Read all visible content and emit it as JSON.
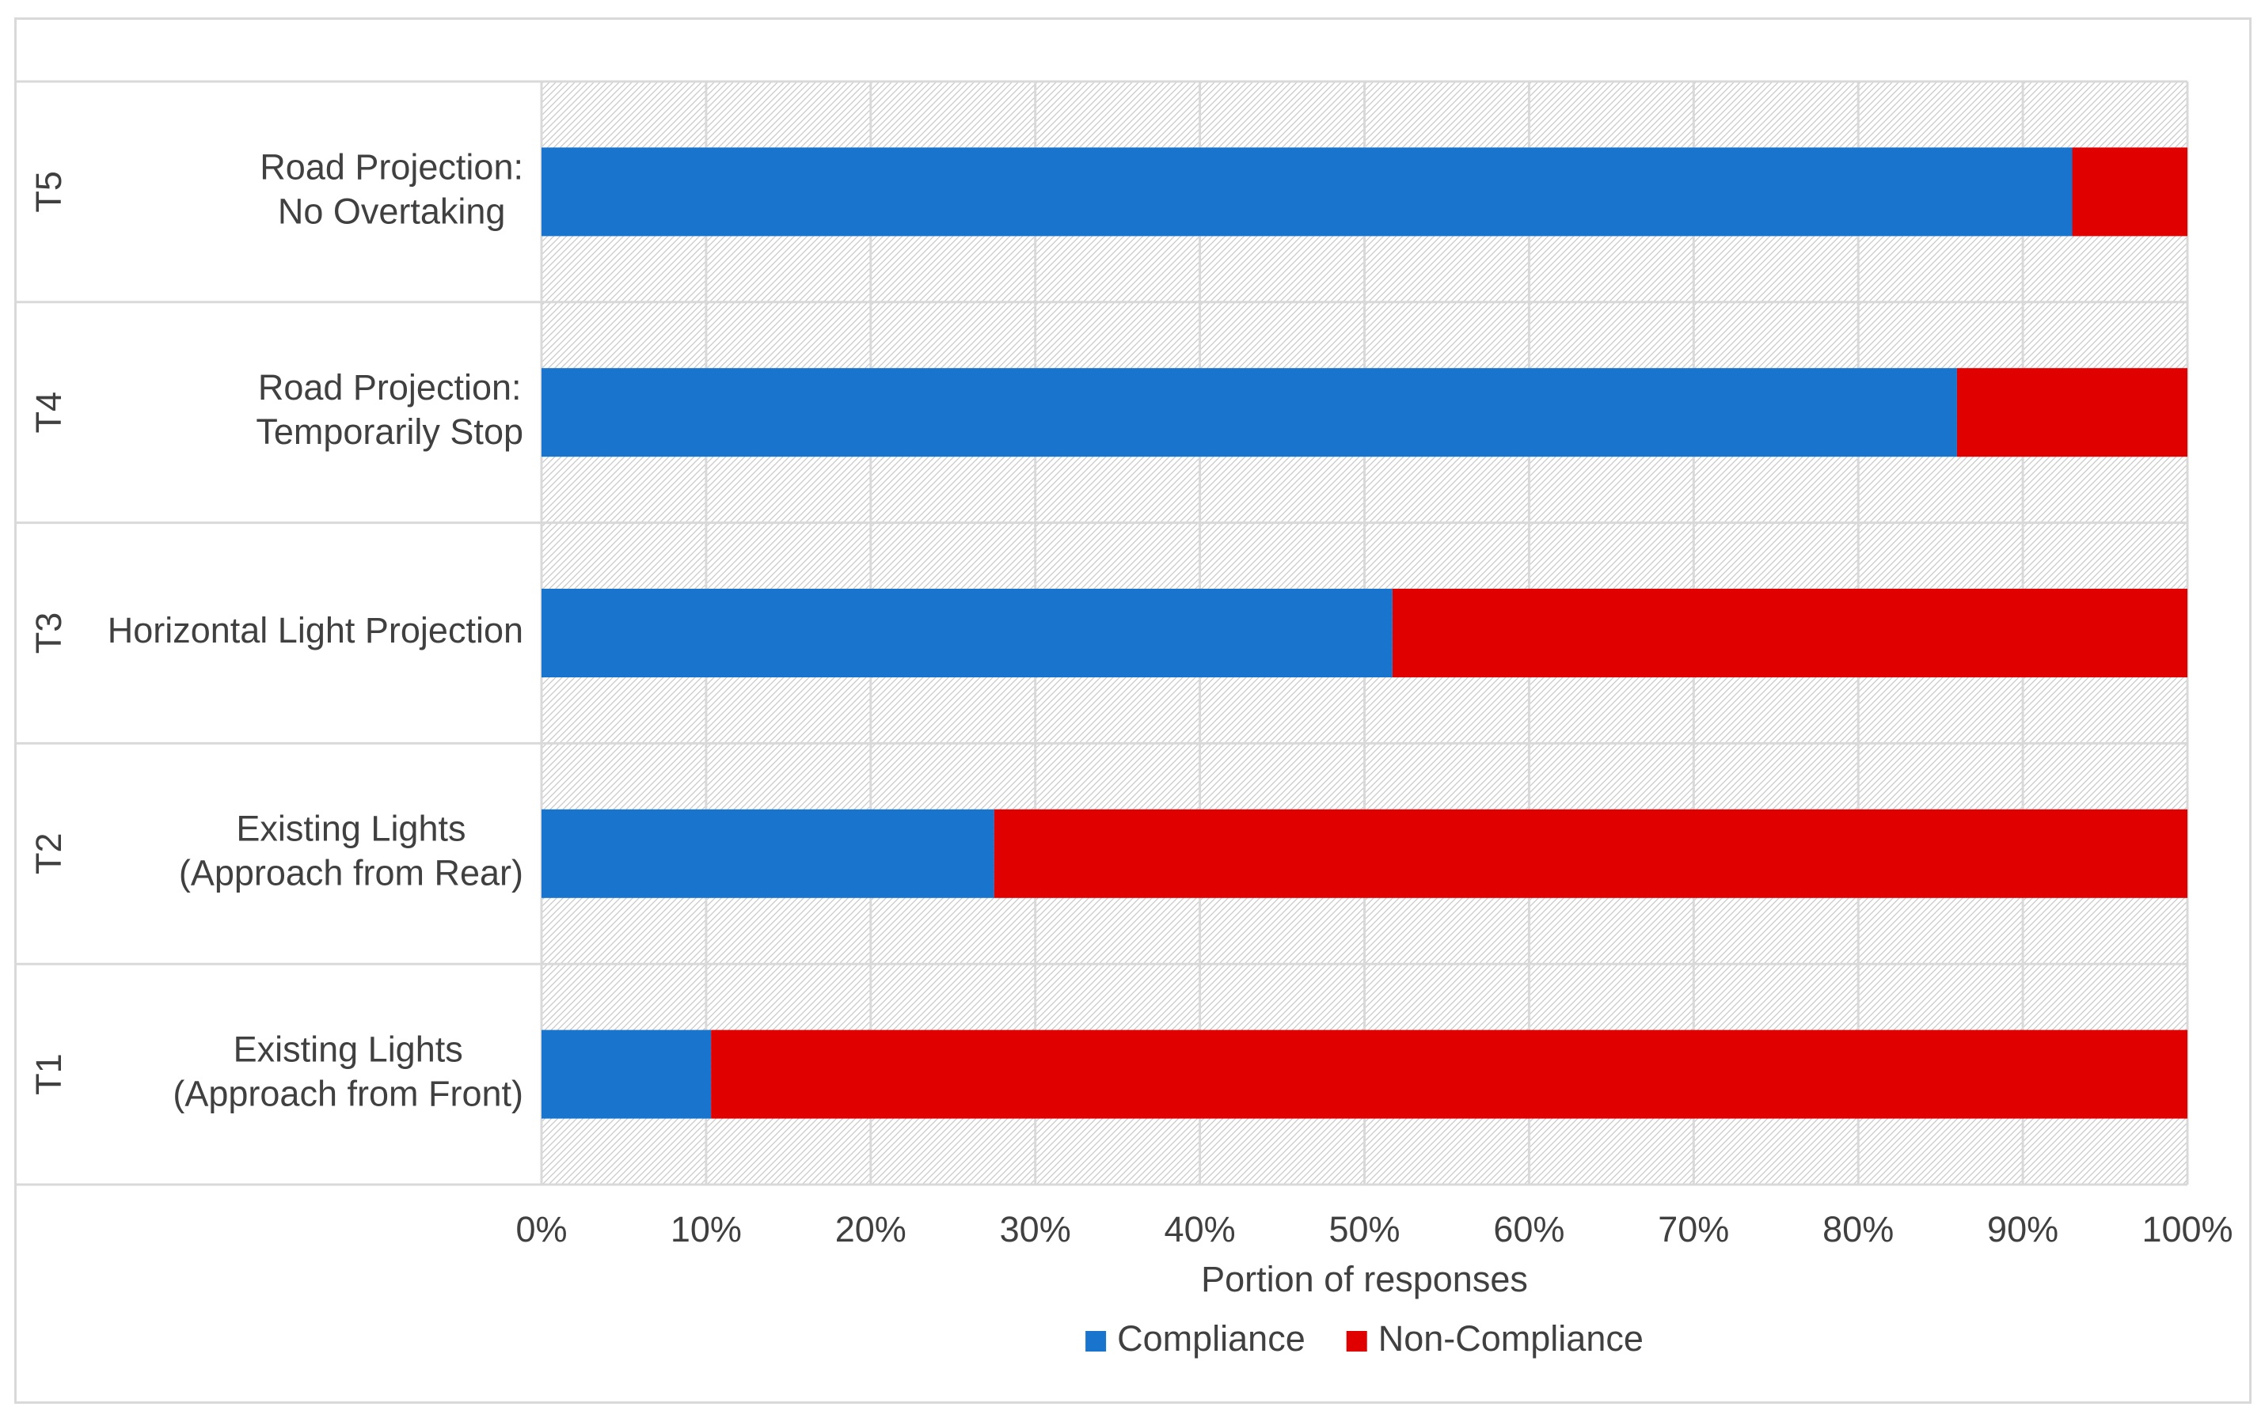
{
  "chart_data": {
    "type": "bar",
    "orientation": "horizontal",
    "stacked": true,
    "percent_stacked": true,
    "title": "",
    "xlabel": "Portion of responses",
    "ylabel": "",
    "xlim": [
      0,
      1
    ],
    "x_ticks": [
      "0%",
      "10%",
      "20%",
      "30%",
      "40%",
      "50%",
      "60%",
      "70%",
      "80%",
      "90%",
      "100%"
    ],
    "grid": true,
    "legend_position": "bottom",
    "categories": [
      {
        "group": "T5",
        "label_lines": [
          "Road Projection:",
          "No Overtaking"
        ]
      },
      {
        "group": "T4",
        "label_lines": [
          "Road Projection:",
          "Temporarily Stop"
        ]
      },
      {
        "group": "T3",
        "label_lines": [
          "Horizontal Light Projection"
        ]
      },
      {
        "group": "T2",
        "label_lines": [
          "Existing Lights",
          "(Approach from Rear)"
        ]
      },
      {
        "group": "T1",
        "label_lines": [
          "Existing Lights",
          "(Approach from Front)"
        ]
      }
    ],
    "series": [
      {
        "name": "Compliance",
        "color": "#1874CD",
        "values": [
          0.93,
          0.86,
          0.517,
          0.275,
          0.103
        ]
      },
      {
        "name": "Non-Compliance",
        "color": "#E00000",
        "values": [
          0.07,
          0.14,
          0.483,
          0.725,
          0.897
        ]
      }
    ]
  }
}
